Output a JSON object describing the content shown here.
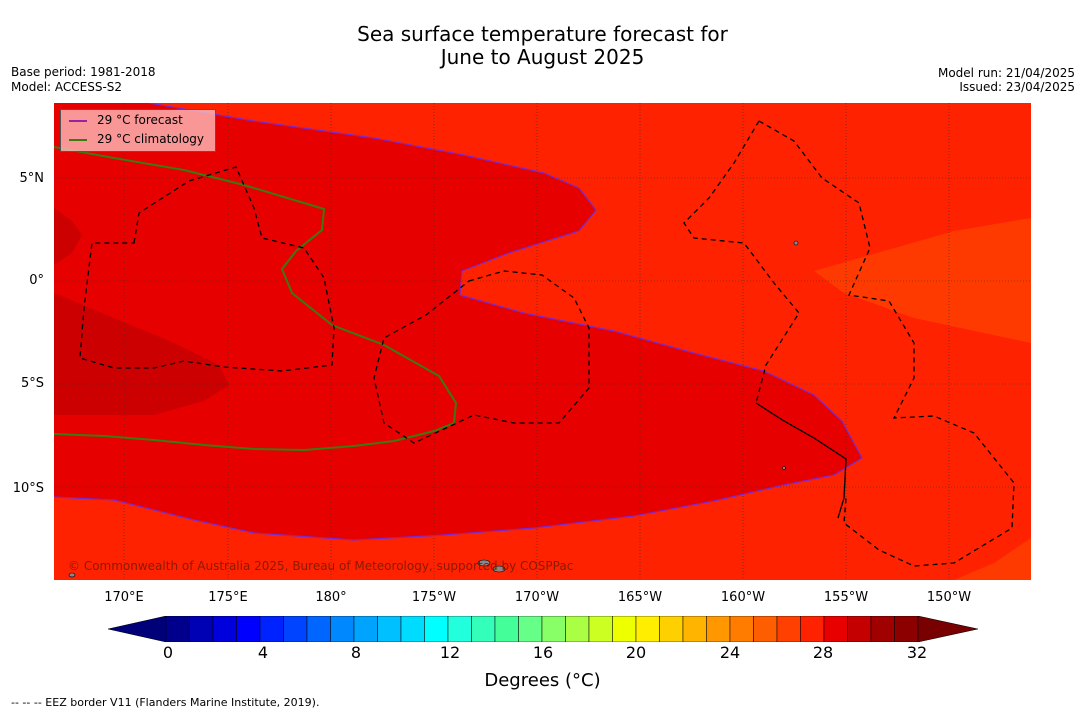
{
  "title_line1": "Sea surface temperature forecast for",
  "title_line2": "June to August 2025",
  "base_period": "Base period: 1981-2018",
  "model": "Model: ACCESS-S2",
  "model_run": "Model run: 21/04/2025",
  "issued": "Issued: 23/04/2025",
  "legend": {
    "forecast_label": "29 °C  forecast",
    "forecast_color": "#9c1fa8",
    "climatology_label": "29 °C  climatology",
    "climatology_color": "#3a7a10"
  },
  "lat_labels": [
    "5°N",
    "0°",
    "5°S",
    "10°S"
  ],
  "lon_labels": [
    "170°E",
    "175°E",
    "180°",
    "175°W",
    "170°W",
    "165°W",
    "160°W",
    "155°W",
    "150°W"
  ],
  "copyright": "© Commonwealth of Australia 2025, Bureau of Meteorology, supported by COSPPac",
  "colorbar": {
    "ticks": [
      "0",
      "4",
      "8",
      "12",
      "16",
      "20",
      "24",
      "28",
      "32"
    ],
    "title": "Degrees (°C)",
    "range": [
      0,
      32
    ],
    "colors": [
      "#00008c",
      "#0000b4",
      "#0000dc",
      "#0000ff",
      "#0022ff",
      "#0044ff",
      "#0066ff",
      "#0088ff",
      "#00a4ff",
      "#00c0ff",
      "#00dcff",
      "#00ffff",
      "#22ffdd",
      "#33ffbb",
      "#44ff99",
      "#66ff88",
      "#88ff66",
      "#aaff44",
      "#ccff22",
      "#eeff00",
      "#ffee00",
      "#ffd000",
      "#ffb400",
      "#ff9800",
      "#ff7c00",
      "#ff5e00",
      "#ff4000",
      "#ff2200",
      "#e80000",
      "#c40000",
      "#a00000",
      "#8c0000"
    ],
    "under_color": "#000078",
    "over_color": "#780000"
  },
  "footnote": "--  --  -- EEZ border V11 (Flanders Marine Institute, 2019)."
}
